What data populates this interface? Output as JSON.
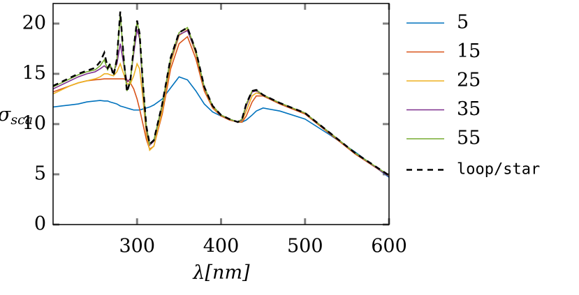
{
  "chart_data": {
    "type": "line",
    "x_label": "λ[nm]",
    "y_label": {
      "symbol": "σ",
      "subscript": "sca"
    },
    "x": [
      200,
      210,
      220,
      230,
      240,
      250,
      256,
      261,
      265,
      268,
      272,
      276,
      280,
      284,
      288,
      292,
      296,
      300,
      303,
      307,
      311,
      315,
      320,
      330,
      340,
      350,
      360,
      370,
      380,
      390,
      400,
      410,
      420,
      425,
      430,
      437,
      442,
      450,
      470,
      500,
      530,
      560,
      600
    ],
    "series": [
      {
        "name": "5",
        "color": "#0072bd",
        "dashed": false,
        "values": [
          11.7,
          11.8,
          11.9,
          12.0,
          12.2,
          12.3,
          12.35,
          12.3,
          12.3,
          12.2,
          12.1,
          12.0,
          11.8,
          11.7,
          11.6,
          11.5,
          11.4,
          11.4,
          11.4,
          11.5,
          11.6,
          11.7,
          11.9,
          12.5,
          13.6,
          14.7,
          14.4,
          13.3,
          12.0,
          11.2,
          10.8,
          10.5,
          10.2,
          10.2,
          10.4,
          10.9,
          11.3,
          11.6,
          11.3,
          10.5,
          8.9,
          7.2,
          4.7
        ]
      },
      {
        "name": "15",
        "color": "#d95319",
        "dashed": false,
        "values": [
          13.2,
          13.5,
          13.8,
          14.1,
          14.3,
          14.4,
          14.45,
          14.5,
          14.5,
          14.5,
          14.5,
          14.5,
          14.5,
          14.5,
          14.4,
          14.1,
          13.5,
          12.5,
          11.5,
          10.0,
          8.5,
          7.5,
          7.8,
          11.0,
          15.5,
          18.0,
          18.7,
          16.5,
          13.3,
          11.6,
          10.8,
          10.4,
          10.2,
          10.2,
          10.8,
          12.2,
          12.8,
          12.8,
          12.0,
          11.0,
          9.0,
          7.0,
          4.8
        ]
      },
      {
        "name": "25",
        "color": "#edb120",
        "dashed": false,
        "values": [
          13.0,
          13.4,
          13.8,
          14.1,
          14.3,
          14.5,
          14.7,
          15.0,
          15.0,
          14.9,
          14.8,
          15.2,
          16.0,
          15.0,
          14.0,
          14.0,
          14.8,
          16.0,
          15.5,
          12.5,
          9.0,
          7.4,
          7.8,
          11.3,
          16.0,
          18.8,
          19.4,
          17.0,
          13.5,
          11.7,
          10.9,
          10.5,
          10.2,
          10.3,
          11.3,
          12.8,
          13.1,
          12.9,
          12.1,
          11.1,
          9.1,
          7.1,
          4.8
        ]
      },
      {
        "name": "35",
        "color": "#7e2f8e",
        "dashed": false,
        "values": [
          13.5,
          13.9,
          14.3,
          14.7,
          15.0,
          15.2,
          15.5,
          15.8,
          15.5,
          15.7,
          15.2,
          16.0,
          18.0,
          16.0,
          14.2,
          14.5,
          17.0,
          19.4,
          18.5,
          13.5,
          9.5,
          7.9,
          8.3,
          11.8,
          16.4,
          18.9,
          19.3,
          17.2,
          13.6,
          11.8,
          10.9,
          10.5,
          10.2,
          10.4,
          11.8,
          13.2,
          13.3,
          12.9,
          12.1,
          11.1,
          9.1,
          7.1,
          4.8
        ]
      },
      {
        "name": "55",
        "color": "#77ac30",
        "dashed": false,
        "values": [
          13.7,
          14.1,
          14.5,
          14.9,
          15.2,
          15.4,
          15.8,
          16.4,
          15.4,
          15.9,
          15.0,
          16.5,
          21.0,
          16.5,
          13.3,
          14.3,
          17.5,
          20.2,
          19.0,
          14.0,
          9.8,
          8.0,
          8.4,
          12.0,
          16.6,
          19.1,
          19.6,
          17.3,
          13.7,
          11.8,
          10.9,
          10.5,
          10.2,
          10.5,
          12.0,
          13.3,
          13.4,
          12.9,
          12.1,
          11.1,
          9.1,
          7.1,
          4.9
        ]
      },
      {
        "name": "loop/star",
        "color": "#000000",
        "dashed": true,
        "values": [
          13.8,
          14.2,
          14.6,
          15.0,
          15.3,
          15.6,
          16.2,
          17.1,
          15.6,
          16.0,
          14.8,
          16.5,
          21.2,
          16.6,
          13.2,
          14.3,
          17.6,
          20.3,
          19.0,
          14.0,
          9.8,
          8.0,
          8.4,
          12.0,
          16.6,
          19.1,
          19.6,
          17.3,
          13.7,
          11.8,
          10.9,
          10.5,
          10.2,
          10.5,
          12.0,
          13.3,
          13.4,
          12.9,
          12.1,
          11.1,
          9.1,
          7.1,
          4.9
        ]
      }
    ],
    "xlim": [
      200,
      600
    ],
    "xticks": [
      300,
      400,
      500,
      600
    ],
    "ylim": [
      0,
      22
    ],
    "yticks": [
      0,
      5,
      10,
      15,
      20
    ],
    "grid": false,
    "legend": "outside-right"
  }
}
